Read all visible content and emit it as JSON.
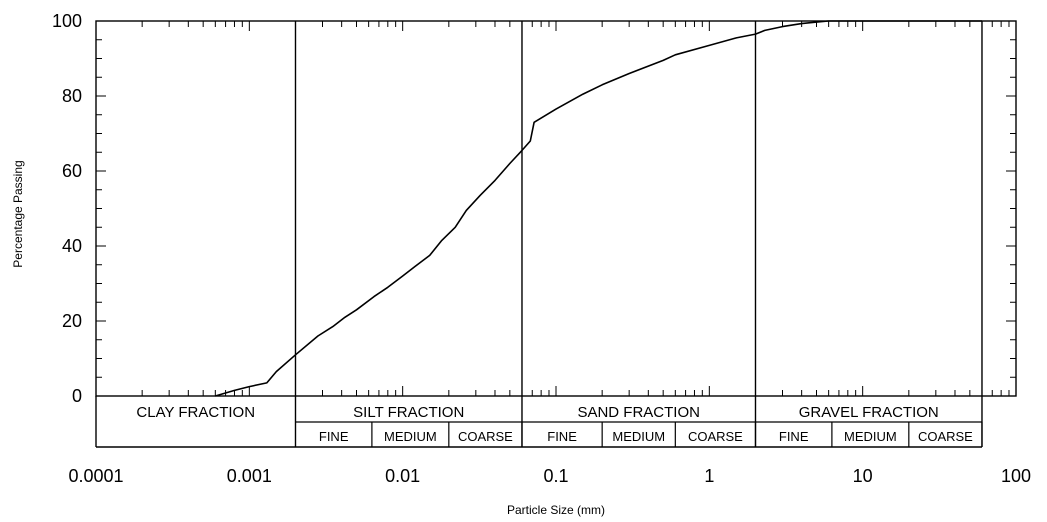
{
  "chart_data": {
    "type": "line",
    "xlabel": "Particle Size (mm)",
    "ylabel": "Percentage Passing",
    "xscale": "log",
    "xlim": [
      0.0001,
      100
    ],
    "ylim": [
      0,
      100
    ],
    "x_ticks": [
      {
        "value": 0.0001,
        "label": "0.0001"
      },
      {
        "value": 0.001,
        "label": "0.001"
      },
      {
        "value": 0.01,
        "label": "0.01"
      },
      {
        "value": 0.1,
        "label": "0.1"
      },
      {
        "value": 1,
        "label": "1"
      },
      {
        "value": 10,
        "label": "10"
      },
      {
        "value": 100,
        "label": "100"
      }
    ],
    "y_ticks": [
      0,
      20,
      40,
      60,
      80,
      100
    ],
    "fraction_boundaries": [
      0.002,
      0.06,
      2,
      60
    ],
    "fractions": [
      {
        "label": "CLAY FRACTION",
        "from": 0.0001,
        "to": 0.002
      },
      {
        "label": "SILT FRACTION",
        "from": 0.002,
        "to": 0.06
      },
      {
        "label": "SAND FRACTION",
        "from": 0.06,
        "to": 2
      },
      {
        "label": "GRAVEL FRACTION",
        "from": 2,
        "to": 60
      }
    ],
    "subfractions": [
      {
        "label": "FINE",
        "from": 0.002,
        "to": 0.0063
      },
      {
        "label": "MEDIUM",
        "from": 0.0063,
        "to": 0.02
      },
      {
        "label": "COARSE",
        "from": 0.02,
        "to": 0.06
      },
      {
        "label": "FINE",
        "from": 0.06,
        "to": 0.2
      },
      {
        "label": "MEDIUM",
        "from": 0.2,
        "to": 0.6
      },
      {
        "label": "COARSE",
        "from": 0.6,
        "to": 2
      },
      {
        "label": "FINE",
        "from": 2,
        "to": 6.3
      },
      {
        "label": "MEDIUM",
        "from": 6.3,
        "to": 20
      },
      {
        "label": "COARSE",
        "from": 20,
        "to": 60
      }
    ],
    "series": [
      {
        "x": [
          0.0006,
          0.0008,
          0.001,
          0.0013,
          0.0015,
          0.002,
          0.0028,
          0.0035,
          0.0042,
          0.005,
          0.0065,
          0.008,
          0.01,
          0.012,
          0.015,
          0.018,
          0.022,
          0.026,
          0.032,
          0.04,
          0.05,
          0.06,
          0.068,
          0.072,
          0.1,
          0.15,
          0.2,
          0.3,
          0.5,
          0.6,
          1,
          1.5,
          2,
          2.3,
          3,
          4,
          5,
          6,
          10,
          20,
          60
        ],
        "y": [
          0,
          1.5,
          2.5,
          3.5,
          6.5,
          11,
          16,
          18.5,
          21,
          23,
          26.5,
          29,
          32,
          34.5,
          37.5,
          41.5,
          45,
          49.5,
          53.5,
          57.5,
          62,
          65.5,
          68,
          73,
          76.5,
          80.5,
          83,
          86,
          89.5,
          91,
          93.5,
          95.5,
          96.5,
          97.5,
          98.5,
          99.3,
          99.7,
          100,
          100,
          100,
          100
        ]
      }
    ]
  }
}
